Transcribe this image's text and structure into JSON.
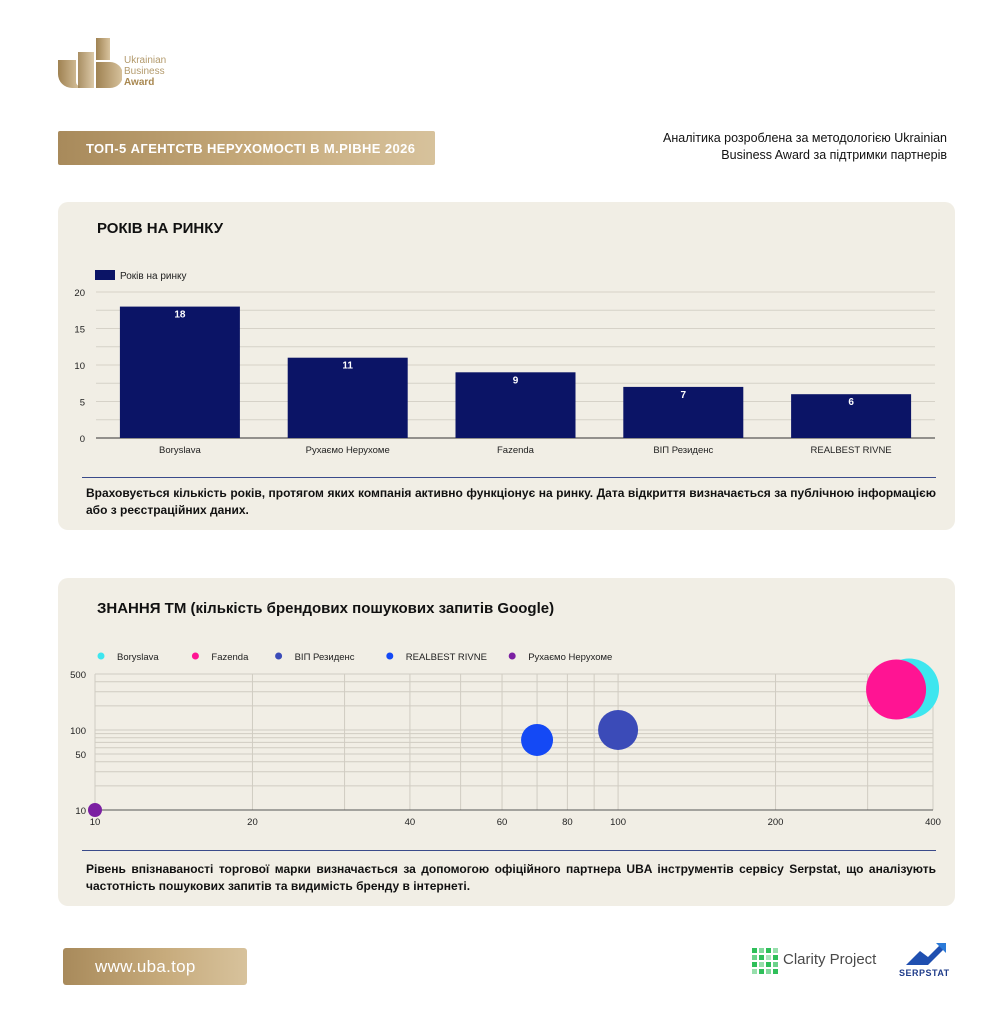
{
  "logo": {
    "line1": "Ukrainian",
    "line2": "Business",
    "line3": "Award"
  },
  "header": {
    "title": "ТОП-5 АГЕНТСТВ НЕРУХОМОСТІ В М.РІВНЕ 2026",
    "note_line1": "Аналітика розроблена за методологією Ukrainian",
    "note_line2": "Business Award за підтримки партнерів"
  },
  "card1": {
    "title": "РОКІВ НА РИНКУ",
    "description": "Враховується кількість років, протягом яких компанія активно функціонує на ринку. Дата відкриття визначається за публічною інформацією або з реєстраційних даних."
  },
  "card2": {
    "title": "ЗНАННЯ ТМ (кількість брендових пошукових запитів Google)",
    "description": "Рівень впізнаваності торгової марки визначається за допомогою офіційного партнера UBA інструментів сервісу Serpstat, що аналізують частотність пошукових запитів та видимість бренду в інтернеті."
  },
  "footer": {
    "url": "www.uba.top",
    "partner1": "Clarity Project",
    "partner2": "SERPSTAT"
  },
  "colors": {
    "gold": "#b89b6a",
    "bar": "#0b1466",
    "card_bg": "#f1eee5"
  },
  "chart_data": [
    {
      "type": "bar",
      "categories": [
        "Boryslava",
        "Рухаємо Нерухоме",
        "Fazenda",
        "ВІП Резиденс",
        "REALBEST RIVNE"
      ],
      "series": [
        {
          "name": "Років на ринку",
          "values": [
            18,
            11,
            9,
            7,
            6
          ]
        }
      ],
      "ylim": [
        0,
        20
      ],
      "yticks": [
        0,
        5,
        10,
        15,
        20
      ],
      "legend": "top-left",
      "grid": true
    },
    {
      "type": "scatter",
      "x_scale": "log",
      "y_scale": "log",
      "xlim": [
        10,
        400
      ],
      "ylim": [
        10,
        500
      ],
      "xticks": [
        10,
        20,
        40,
        60,
        80,
        100,
        200,
        400
      ],
      "yticks": [
        10,
        50,
        100,
        500
      ],
      "legend": "top-left",
      "grid": true,
      "series": [
        {
          "name": "Boryslava",
          "color": "#3ee6ef",
          "x": 360,
          "y": 330,
          "size": 3
        },
        {
          "name": "Fazenda",
          "color": "#ff1493",
          "x": 340,
          "y": 320,
          "size": 3
        },
        {
          "name": "ВІП Резиденс",
          "color": "#3b4bb8",
          "x": 100,
          "y": 100,
          "size": 2
        },
        {
          "name": "REALBEST RIVNE",
          "color": "#1449f5",
          "x": 70,
          "y": 75,
          "size": 1.6
        },
        {
          "name": "Рухаємо Нерухоме",
          "color": "#7b1fa2",
          "x": 10,
          "y": 10,
          "size": 0.7
        }
      ]
    }
  ]
}
